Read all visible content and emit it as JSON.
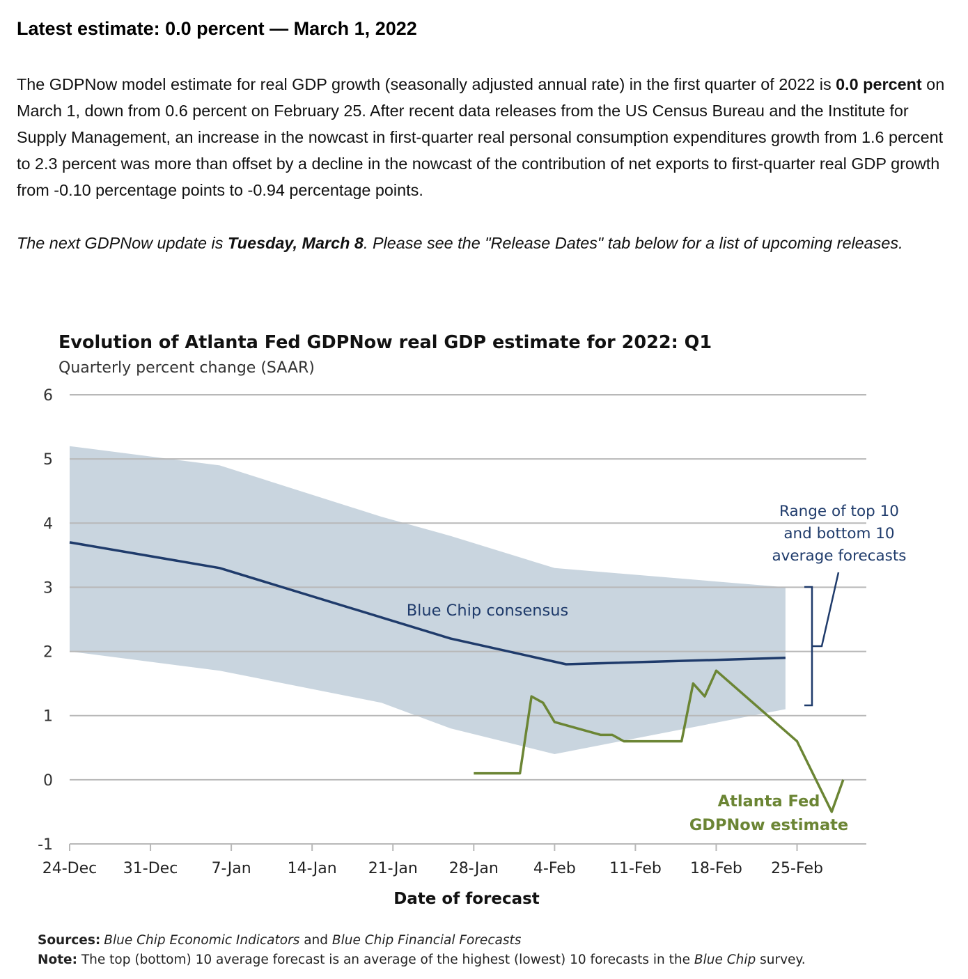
{
  "header": {
    "headline": "Latest estimate: 0.0 percent — March 1, 2022"
  },
  "summary": {
    "t1": "The GDPNow model estimate for real GDP growth (seasonally adjusted annual rate) in the first quarter of 2022 is ",
    "b1": "0.0 percent",
    "t2": " on March 1, down from 0.6 percent on February 25. After recent data releases from the US Census Bureau and the Institute for Supply Management, an increase in the nowcast in first-quarter real personal consumption expenditures growth from 1.6 percent to 2.3 percent was more than offset by a decline in the nowcast of the contribution of net exports to first-quarter real GDP growth from -0.10 percentage points to -0.94 percentage points."
  },
  "next_update": {
    "t1": "The next GDPNow update is ",
    "b1": "Tuesday, March 8",
    "t2": ". Please see the \"Release Dates\" tab below for a list of upcoming releases."
  },
  "chart_data": {
    "type": "line",
    "title": "Evolution of Atlanta Fed GDPNow real GDP estimate for 2022: Q1",
    "subtitle": "Quarterly percent change (SAAR)",
    "xlabel": "Date of forecast",
    "ylabel": "",
    "ylim": [
      -1,
      6
    ],
    "yticks": [
      -1,
      0,
      1,
      2,
      3,
      4,
      5,
      6
    ],
    "xtick_labels": [
      "24-Dec",
      "31-Dec",
      "7-Jan",
      "14-Jan",
      "21-Jan",
      "28-Jan",
      "4-Feb",
      "11-Feb",
      "18-Feb",
      "25-Feb"
    ],
    "xtick_dates": [
      "2021-12-24",
      "2021-12-31",
      "2022-01-07",
      "2022-01-14",
      "2022-01-21",
      "2022-01-28",
      "2022-02-04",
      "2022-02-11",
      "2022-02-18",
      "2022-02-25"
    ],
    "x_range": [
      "2021-12-24",
      "2022-03-03"
    ],
    "grid": "horizontal",
    "series": [
      {
        "name": "Blue Chip consensus",
        "color": "#1f3b6b",
        "points": [
          [
            "2021-12-24",
            3.7
          ],
          [
            "2022-01-06",
            3.3
          ],
          [
            "2022-01-26",
            2.2
          ],
          [
            "2022-02-05",
            1.8
          ],
          [
            "2022-02-24",
            1.9
          ]
        ]
      },
      {
        "name": "Atlanta Fed GDPNow estimate",
        "color": "#6b8534",
        "points": [
          [
            "2022-01-28",
            0.1
          ],
          [
            "2022-02-01",
            0.1
          ],
          [
            "2022-02-02",
            1.3
          ],
          [
            "2022-02-03",
            1.2
          ],
          [
            "2022-02-04",
            0.9
          ],
          [
            "2022-02-08",
            0.7
          ],
          [
            "2022-02-09",
            0.7
          ],
          [
            "2022-02-10",
            0.6
          ],
          [
            "2022-02-15",
            0.6
          ],
          [
            "2022-02-16",
            1.5
          ],
          [
            "2022-02-17",
            1.3
          ],
          [
            "2022-02-18",
            1.7
          ],
          [
            "2022-02-25",
            0.6
          ],
          [
            "2022-02-28",
            -0.5
          ],
          [
            "2022-03-01",
            0.0
          ]
        ]
      }
    ],
    "band": {
      "name": "Range of top 10 and bottom 10 average forecasts",
      "color": "#c9d5df",
      "upper": [
        [
          "2021-12-24",
          5.2
        ],
        [
          "2022-01-06",
          4.9
        ],
        [
          "2022-01-20",
          4.1
        ],
        [
          "2022-01-26",
          3.8
        ],
        [
          "2022-02-04",
          3.3
        ],
        [
          "2022-02-24",
          3.0
        ]
      ],
      "lower": [
        [
          "2021-12-24",
          2.0
        ],
        [
          "2022-01-06",
          1.7
        ],
        [
          "2022-01-20",
          1.2
        ],
        [
          "2022-01-26",
          0.8
        ],
        [
          "2022-02-04",
          0.4
        ],
        [
          "2022-02-24",
          1.1
        ]
      ]
    },
    "annotations": {
      "consensus_label": "Blue Chip consensus",
      "range_label_1": "Range of top 10",
      "range_label_2": "and bottom 10",
      "range_label_3": "average forecasts",
      "gdpnow_label_1": "Atlanta Fed",
      "gdpnow_label_2": "GDPNow estimate"
    }
  },
  "footnotes": {
    "sources_label": "Sources:",
    "sources_text_1": "Blue Chip Economic Indicators",
    "sources_text_2": " and ",
    "sources_text_3": "Blue Chip Financial Forecasts",
    "note_label": "Note:",
    "note_text_1": " The top (bottom) 10 average forecast is an average of the highest (lowest) 10 forecasts in the ",
    "note_text_2": "Blue Chip",
    "note_text_3": " survey."
  }
}
